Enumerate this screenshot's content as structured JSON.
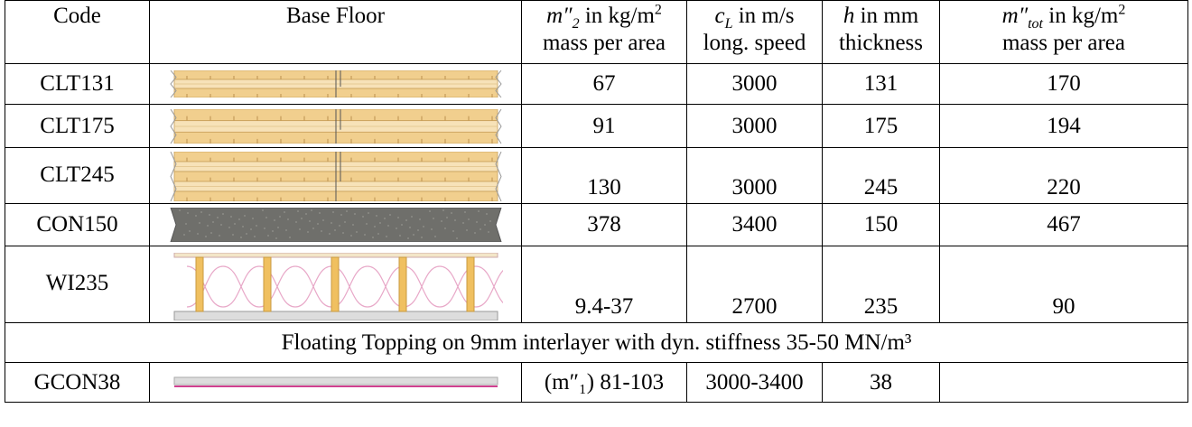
{
  "table": {
    "header": {
      "code": "Code",
      "base": "Base Floor",
      "columns": [
        {
          "symbol": "m″",
          "subscript": "2",
          "unit": "in kg/m",
          "exponent": "2",
          "desc": "mass per area"
        },
        {
          "symbol": "c",
          "subscript": "L",
          "unit": "in m/s",
          "desc": "long. speed"
        },
        {
          "symbol": "h",
          "unit": "in mm",
          "desc": "thickness"
        },
        {
          "symbol": "m″",
          "subscript": "tot",
          "unit": "in kg/m",
          "exponent": "2",
          "desc": "mass per area"
        }
      ]
    },
    "rows": [
      {
        "code": "CLT131",
        "values": [
          67,
          3000,
          131,
          170
        ]
      },
      {
        "code": "CLT175",
        "values": [
          91,
          3000,
          175,
          194
        ]
      },
      {
        "code": "CLT245",
        "values": [
          130,
          3000,
          245,
          220
        ]
      },
      {
        "code": "CON150",
        "values": [
          378,
          3400,
          150,
          467
        ]
      },
      {
        "code": "WI235",
        "values": [
          "9.4-37",
          2700,
          235,
          90
        ]
      }
    ],
    "section": "Floating Topping on 9mm interlayer with dyn. stiffness 35-50 MN/m³",
    "topping_rows": [
      {
        "code": "GCON38",
        "values": [
          "(m″₁) 81-103",
          "3000-3400",
          38
        ]
      }
    ]
  }
}
